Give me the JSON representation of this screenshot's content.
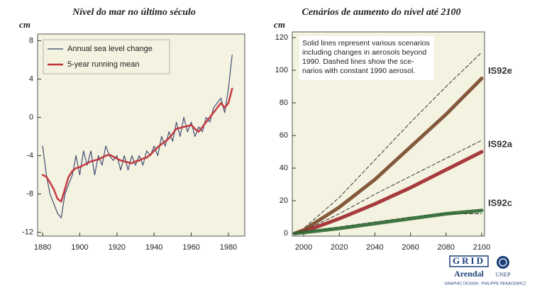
{
  "chart_data": [
    {
      "type": "line",
      "title": "Nível do mar no último século",
      "y_label": "cm",
      "x": [
        1880,
        1882,
        1884,
        1886,
        1888,
        1890,
        1892,
        1894,
        1896,
        1898,
        1900,
        1902,
        1904,
        1906,
        1908,
        1910,
        1912,
        1914,
        1916,
        1918,
        1920,
        1922,
        1924,
        1926,
        1928,
        1930,
        1932,
        1934,
        1936,
        1938,
        1940,
        1942,
        1944,
        1946,
        1948,
        1950,
        1952,
        1954,
        1956,
        1958,
        1960,
        1962,
        1964,
        1966,
        1968,
        1970,
        1972,
        1974,
        1976,
        1978,
        1980,
        1982
      ],
      "series": [
        {
          "name": "Annual sea level change",
          "color": "#34406e",
          "width": 1.2,
          "values": [
            -3,
            -6,
            -8,
            -9,
            -10,
            -10.5,
            -8,
            -7,
            -6,
            -4,
            -6,
            -3.5,
            -5,
            -3.5,
            -6,
            -4,
            -5,
            -3,
            -4,
            -4.5,
            -4,
            -5.5,
            -4,
            -5.5,
            -4,
            -5,
            -4,
            -5,
            -3.5,
            -4,
            -3,
            -4,
            -2,
            -3,
            -1.5,
            -2.5,
            -0.5,
            -2,
            0,
            -1.5,
            -0.5,
            -2,
            -1,
            -1.5,
            0,
            -0.5,
            1,
            1.5,
            2,
            0.5,
            3,
            6.5
          ]
        },
        {
          "name": "5-year running mean",
          "color": "#c0303a",
          "width": 2.6,
          "values": [
            -6,
            -6.2,
            -6.8,
            -7.5,
            -8.5,
            -8.8,
            -7.5,
            -6.2,
            -5.6,
            -5.3,
            -5.2,
            -5,
            -4.8,
            -4.6,
            -4.5,
            -4.4,
            -4.2,
            -4,
            -3.9,
            -4.1,
            -4.3,
            -4.5,
            -4.6,
            -4.7,
            -4.8,
            -4.6,
            -4.5,
            -4.3,
            -4.2,
            -3.9,
            -3.5,
            -3.1,
            -2.8,
            -2.5,
            -2.2,
            -1.7,
            -1.2,
            -1.1,
            -1,
            -0.9,
            -0.8,
            -1.2,
            -1.5,
            -1,
            -0.5,
            0,
            0.5,
            1,
            1.5,
            1,
            1.5,
            3
          ]
        }
      ],
      "xlim": [
        1877.3,
        1988.8
      ],
      "xticks": [
        1880,
        1900,
        1920,
        1940,
        1960,
        1980
      ],
      "ylim": [
        -12.4,
        8.7
      ],
      "yticks": [
        8,
        4,
        0,
        -4,
        -8,
        -12
      ],
      "legend": "upper left",
      "background": "#f4f2e0"
    },
    {
      "type": "line",
      "title": "Cenários de aumento do nível até 2100",
      "y_label": "cm",
      "x": [
        1995,
        2000,
        2020,
        2040,
        2060,
        2080,
        2100
      ],
      "series": [
        {
          "name": "IS92e",
          "color": "#7a4b2c",
          "width": 5,
          "values": [
            0,
            2,
            16,
            33,
            53,
            73,
            95
          ],
          "constant_aerosol_values": [
            0,
            3,
            22,
            45,
            68,
            90,
            111
          ]
        },
        {
          "name": "IS92a",
          "color": "#9e2a2e",
          "width": 5,
          "values": [
            0,
            1,
            9,
            18,
            28,
            39,
            50
          ],
          "constant_aerosol_values": [
            0,
            1.5,
            12,
            24,
            35,
            46,
            57
          ]
        },
        {
          "name": "IS92c",
          "color": "#2f6a35",
          "width": 5,
          "values": [
            0,
            0.5,
            3,
            6,
            9,
            12,
            14
          ],
          "constant_aerosol_values": [
            0,
            1,
            4,
            7,
            10,
            12,
            12
          ]
        }
      ],
      "xlim": [
        1993.6,
        2101.6
      ],
      "xticks": [
        2000,
        2020,
        2040,
        2060,
        2080,
        2100
      ],
      "ylim": [
        -1.7,
        123.5
      ],
      "yticks": [
        0,
        20,
        40,
        60,
        80,
        100,
        120
      ],
      "annotation": [
        "Solid lines represent various scenarios",
        "including changes in aerosols beyond",
        "1990. Dashed lines show the sce-",
        "narios with constant 1990 aerosol."
      ],
      "background": "#f4f2e0"
    }
  ],
  "credits": {
    "logo": "GRID",
    "place": "Arendal",
    "agency": "UNEP",
    "design": "GRAPHIC DESIGN : PHILIPPE REKACEWICZ"
  }
}
